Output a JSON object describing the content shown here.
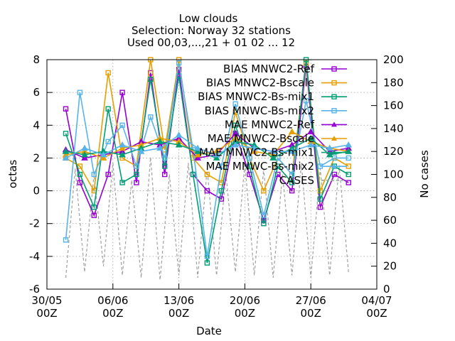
{
  "colors": {
    "BIAS MNWC2-Ref": "#9400d3",
    "BIAS MNWC2-Bscale": "#e69f00",
    "BIAS MNWC2-Bs-mix1": "#009e73",
    "BIAS MNWC-Bs-mix2": "#56b4e9",
    "MAE MNWC2-Ref": "#9400d3",
    "MAE MNWC2-Bscale": "#e69f00",
    "MAE MNWC2-Bs-mix1": "#009e73",
    "MAE MNWC-Bs-mix2": "#56b4e9",
    "CASES": "#a0a0a0"
  },
  "chart_data": {
    "type": "line",
    "title": [
      "Low clouds",
      "Selection: Norway      32 stations",
      "Used 00,03,...,21 + 01 02 ... 12"
    ],
    "xlabel": "Date",
    "ylabel": "octas",
    "y2label": "No cases",
    "xlim": [
      "2022-05-30 00Z",
      "2022-07-04 00Z"
    ],
    "ylim": [
      -6,
      8
    ],
    "y2lim": [
      0,
      200
    ],
    "x_ticks": [
      {
        "date": "2022-05-30",
        "line1": "30/05",
        "line2": "00Z"
      },
      {
        "date": "2022-06-06",
        "line1": "06/06",
        "line2": "00Z"
      },
      {
        "date": "2022-06-13",
        "line1": "13/06",
        "line2": "00Z"
      },
      {
        "date": "2022-06-20",
        "line1": "20/06",
        "line2": "00Z"
      },
      {
        "date": "2022-06-27",
        "line1": "27/06",
        "line2": "00Z"
      },
      {
        "date": "2022-07-04",
        "line1": "04/07",
        "line2": "00Z"
      }
    ],
    "y_ticks": [
      -6,
      -4,
      -2,
      0,
      2,
      4,
      6,
      8
    ],
    "y2_ticks": [
      0,
      20,
      40,
      60,
      80,
      100,
      120,
      140,
      160,
      180,
      200
    ],
    "grid": true,
    "legend_position": "top-right",
    "legend": [
      "BIAS MNWC2-Ref",
      "BIAS MNWC2-Bscale",
      "BIAS MNWC2-Bs-mix1",
      "BIAS MNWC-Bs-mix2",
      "MAE MNWC2-Ref",
      "MAE MNWC2-Bscale",
      "MAE MNWC2-Bs-mix1",
      "MAE MNWC-Bs-mix2",
      "CASES"
    ],
    "series": [
      {
        "name": "BIAS MNWC2-Ref",
        "axis": "y",
        "marker": "square",
        "x": [
          "2022-06-01 00Z",
          "2022-06-02 12Z",
          "2022-06-04 00Z",
          "2022-06-05 12Z",
          "2022-06-07 00Z",
          "2022-06-08 12Z",
          "2022-06-10 00Z",
          "2022-06-11 12Z",
          "2022-06-13 00Z",
          "2022-06-14 12Z",
          "2022-06-16 00Z",
          "2022-06-17 12Z",
          "2022-06-19 00Z",
          "2022-06-20 12Z",
          "2022-06-22 00Z",
          "2022-06-23 12Z",
          "2022-06-25 00Z",
          "2022-06-26 12Z",
          "2022-06-28 00Z",
          "2022-06-29 12Z",
          "2022-07-01 00Z"
        ],
        "values": [
          5.0,
          0.5,
          -1.5,
          1.0,
          6.0,
          0.5,
          7.2,
          1.0,
          7.4,
          1.0,
          0.0,
          -0.5,
          3.5,
          1.0,
          -1.8,
          1.0,
          0.0,
          7.6,
          -1.0,
          1.0,
          0.5
        ]
      },
      {
        "name": "BIAS MNWC2-Bscale",
        "axis": "y",
        "marker": "square",
        "x": [
          "2022-06-01 00Z",
          "2022-06-02 12Z",
          "2022-06-04 00Z",
          "2022-06-05 12Z",
          "2022-06-07 00Z",
          "2022-06-08 12Z",
          "2022-06-10 00Z",
          "2022-06-11 12Z",
          "2022-06-13 00Z",
          "2022-06-14 12Z",
          "2022-06-16 00Z",
          "2022-06-17 12Z",
          "2022-06-19 00Z",
          "2022-06-20 12Z",
          "2022-06-22 00Z",
          "2022-06-23 12Z",
          "2022-06-25 00Z",
          "2022-06-26 12Z",
          "2022-06-28 00Z",
          "2022-06-29 12Z",
          "2022-07-01 00Z"
        ],
        "values": [
          2.0,
          1.5,
          0.0,
          7.2,
          2.0,
          1.5,
          8.0,
          2.5,
          8.0,
          2.0,
          1.0,
          0.5,
          4.8,
          2.0,
          0.0,
          2.0,
          1.0,
          7.8,
          0.0,
          2.0,
          1.5
        ]
      },
      {
        "name": "BIAS MNWC2-Bs-mix1",
        "axis": "y",
        "marker": "square",
        "x": [
          "2022-06-01 00Z",
          "2022-06-02 12Z",
          "2022-06-04 00Z",
          "2022-06-05 12Z",
          "2022-06-07 00Z",
          "2022-06-08 12Z",
          "2022-06-10 00Z",
          "2022-06-11 12Z",
          "2022-06-13 00Z",
          "2022-06-14 12Z",
          "2022-06-16 00Z",
          "2022-06-17 12Z",
          "2022-06-19 00Z",
          "2022-06-20 12Z",
          "2022-06-22 00Z",
          "2022-06-23 12Z",
          "2022-06-25 00Z",
          "2022-06-26 12Z",
          "2022-06-28 00Z",
          "2022-06-29 12Z",
          "2022-07-01 00Z"
        ],
        "values": [
          3.5,
          1.0,
          -1.0,
          5.0,
          0.5,
          1.0,
          6.8,
          1.5,
          7.0,
          1.0,
          -4.4,
          0.0,
          4.0,
          1.5,
          -2.0,
          1.5,
          0.5,
          8.0,
          -0.5,
          1.5,
          1.0
        ]
      },
      {
        "name": "BIAS MNWC-Bs-mix2",
        "axis": "y",
        "marker": "square",
        "x": [
          "2022-06-01 00Z",
          "2022-06-02 12Z",
          "2022-06-04 00Z",
          "2022-06-05 12Z",
          "2022-06-07 00Z",
          "2022-06-08 12Z",
          "2022-06-10 00Z",
          "2022-06-11 12Z",
          "2022-06-13 00Z",
          "2022-06-14 12Z",
          "2022-06-16 00Z",
          "2022-06-17 12Z",
          "2022-06-19 00Z",
          "2022-06-20 12Z",
          "2022-06-22 00Z",
          "2022-06-23 12Z",
          "2022-06-25 00Z",
          "2022-06-26 12Z",
          "2022-06-28 00Z",
          "2022-06-29 12Z",
          "2022-07-01 00Z"
        ],
        "values": [
          -3.0,
          6.0,
          1.0,
          3.0,
          4.0,
          1.5,
          4.5,
          2.0,
          7.8,
          2.5,
          -4.0,
          1.5,
          5.3,
          2.0,
          -1.5,
          2.0,
          1.0,
          5.5,
          1.5,
          2.0,
          2.0
        ]
      },
      {
        "name": "MAE MNWC2-Ref",
        "axis": "y",
        "marker": "triangle",
        "x": [
          "2022-06-01 00Z",
          "2022-06-03 00Z",
          "2022-06-05 00Z",
          "2022-06-07 00Z",
          "2022-06-09 00Z",
          "2022-06-11 00Z",
          "2022-06-13 00Z",
          "2022-06-15 00Z",
          "2022-06-17 00Z",
          "2022-06-19 00Z",
          "2022-06-21 00Z",
          "2022-06-23 00Z",
          "2022-06-25 00Z",
          "2022-06-27 00Z",
          "2022-06-29 00Z",
          "2022-07-01 00Z"
        ],
        "values": [
          2.5,
          2.0,
          2.2,
          2.4,
          3.0,
          2.8,
          3.2,
          2.0,
          2.2,
          3.5,
          2.6,
          2.4,
          2.8,
          3.6,
          2.4,
          2.6
        ]
      },
      {
        "name": "MAE MNWC2-Bscale",
        "axis": "y",
        "marker": "triangle",
        "x": [
          "2022-06-01 00Z",
          "2022-06-03 00Z",
          "2022-06-05 00Z",
          "2022-06-07 00Z",
          "2022-06-09 00Z",
          "2022-06-11 00Z",
          "2022-06-13 00Z",
          "2022-06-15 00Z",
          "2022-06-17 00Z",
          "2022-06-19 00Z",
          "2022-06-21 00Z",
          "2022-06-23 00Z",
          "2022-06-25 00Z",
          "2022-06-27 00Z",
          "2022-06-29 00Z",
          "2022-07-01 00Z"
        ],
        "values": [
          2.2,
          2.4,
          2.0,
          2.6,
          2.8,
          3.2,
          3.0,
          2.2,
          2.4,
          3.2,
          2.4,
          2.2,
          3.6,
          3.0,
          2.6,
          2.4
        ]
      },
      {
        "name": "MAE MNWC2-Bs-mix1",
        "axis": "y",
        "marker": "triangle",
        "x": [
          "2022-06-01 00Z",
          "2022-06-03 00Z",
          "2022-06-05 00Z",
          "2022-06-07 00Z",
          "2022-06-09 00Z",
          "2022-06-11 00Z",
          "2022-06-13 00Z",
          "2022-06-15 00Z",
          "2022-06-17 00Z",
          "2022-06-19 00Z",
          "2022-06-21 00Z",
          "2022-06-23 00Z",
          "2022-06-25 00Z",
          "2022-06-27 00Z",
          "2022-06-29 00Z",
          "2022-07-01 00Z"
        ],
        "values": [
          2.4,
          2.2,
          2.4,
          2.2,
          2.6,
          3.0,
          2.8,
          2.4,
          2.0,
          3.0,
          2.8,
          2.0,
          2.6,
          3.2,
          2.2,
          2.4
        ]
      },
      {
        "name": "MAE MNWC-Bs-mix2",
        "axis": "y",
        "marker": "triangle",
        "x": [
          "2022-06-01 00Z",
          "2022-06-03 00Z",
          "2022-06-05 00Z",
          "2022-06-07 00Z",
          "2022-06-09 00Z",
          "2022-06-11 00Z",
          "2022-06-13 00Z",
          "2022-06-15 00Z",
          "2022-06-17 00Z",
          "2022-06-19 00Z",
          "2022-06-21 00Z",
          "2022-06-23 00Z",
          "2022-06-25 00Z",
          "2022-06-27 00Z",
          "2022-06-29 00Z",
          "2022-07-01 00Z"
        ],
        "values": [
          2.0,
          2.6,
          2.2,
          2.8,
          2.4,
          2.6,
          3.4,
          2.6,
          2.2,
          2.8,
          2.6,
          2.4,
          2.4,
          2.8,
          2.6,
          2.8
        ]
      },
      {
        "name": "CASES",
        "axis": "y2",
        "marker": "none",
        "dashed": true,
        "x": [
          "2022-06-01 00Z",
          "2022-06-02 00Z",
          "2022-06-03 00Z",
          "2022-06-04 00Z",
          "2022-06-05 00Z",
          "2022-06-06 00Z",
          "2022-06-07 00Z",
          "2022-06-08 00Z",
          "2022-06-09 00Z",
          "2022-06-10 00Z",
          "2022-06-11 00Z",
          "2022-06-12 00Z",
          "2022-06-13 00Z",
          "2022-06-14 00Z",
          "2022-06-15 00Z",
          "2022-06-16 00Z",
          "2022-06-17 00Z",
          "2022-06-18 00Z",
          "2022-06-19 00Z",
          "2022-06-20 00Z",
          "2022-06-21 00Z",
          "2022-06-22 00Z",
          "2022-06-23 00Z",
          "2022-06-24 00Z",
          "2022-06-25 00Z",
          "2022-06-26 00Z",
          "2022-06-27 00Z",
          "2022-06-28 00Z",
          "2022-06-29 00Z",
          "2022-06-30 00Z",
          "2022-07-01 00Z"
        ],
        "values": [
          10,
          105,
          15,
          100,
          20,
          110,
          12,
          95,
          10,
          115,
          8,
          100,
          12,
          110,
          10,
          105,
          12,
          100,
          15,
          110,
          12,
          105,
          10,
          100,
          12,
          110,
          10,
          105,
          12,
          108,
          15
        ]
      }
    ]
  }
}
